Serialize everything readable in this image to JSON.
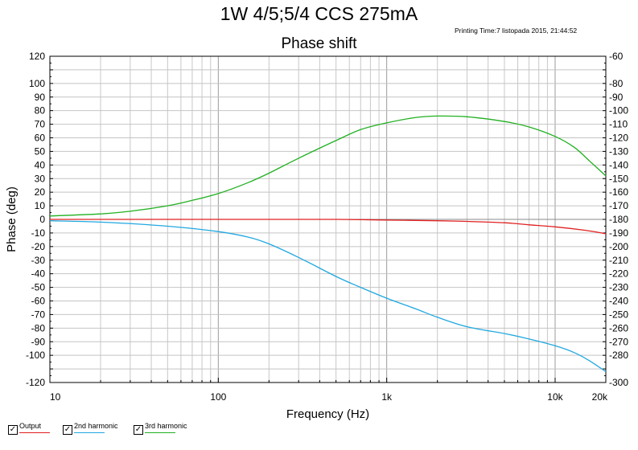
{
  "header": {
    "title": "1W 4/5;5/4 CCS 275mA",
    "printing_time": "Printing Time:7 listopada 2015, 21:44:52"
  },
  "legend": {
    "items": [
      {
        "label": "Output",
        "color": "#e02020",
        "checked": true
      },
      {
        "label": "2nd harmonic",
        "color": "#20a8e0",
        "checked": true
      },
      {
        "label": "3rd harmonic",
        "color": "#20b020",
        "checked": true
      }
    ],
    "check_glyph": "✓"
  },
  "chart_data": {
    "type": "line",
    "title": "Phase shift",
    "xlabel": "Frequency (Hz)",
    "ylabel": "Phase (deg)",
    "xscale": "log",
    "xlim": [
      10,
      20000
    ],
    "ylim": [
      -120,
      120
    ],
    "y2lim": [
      -300,
      -60
    ],
    "grid": true,
    "x_ticks": [
      {
        "value": 10,
        "label": "10"
      },
      {
        "value": 100,
        "label": "100"
      },
      {
        "value": 1000,
        "label": "1k"
      },
      {
        "value": 10000,
        "label": "10k"
      },
      {
        "value": 20000,
        "label": "20k"
      }
    ],
    "y_ticks": [
      120,
      100,
      90,
      80,
      70,
      60,
      50,
      40,
      30,
      20,
      10,
      0,
      -10,
      -20,
      -30,
      -40,
      -50,
      -60,
      -70,
      -80,
      -90,
      -100,
      -120
    ],
    "y2_ticks": [
      -60,
      -80,
      -90,
      -100,
      -110,
      -120,
      -130,
      -140,
      -150,
      -160,
      -170,
      -180,
      -190,
      -200,
      -210,
      -220,
      -230,
      -240,
      -250,
      -260,
      -270,
      -280,
      -300
    ],
    "series": [
      {
        "name": "Output",
        "color": "#e02020",
        "x": [
          10,
          20,
          50,
          100,
          200,
          500,
          1000,
          2000,
          3000,
          5000,
          7000,
          10000,
          15000,
          20000
        ],
        "y": [
          0,
          0,
          0,
          0,
          0,
          0,
          -0.5,
          -1,
          -1.5,
          -2.5,
          -4,
          -5.5,
          -8,
          -10.5
        ]
      },
      {
        "name": "2nd harmonic",
        "color": "#20a8e0",
        "x": [
          10,
          20,
          50,
          100,
          150,
          200,
          300,
          500,
          700,
          1000,
          1500,
          2000,
          3000,
          5000,
          7000,
          10000,
          13000,
          16000,
          20000
        ],
        "y": [
          -1,
          -2,
          -5,
          -9,
          -13,
          -18,
          -28,
          -42,
          -50,
          -58,
          -66,
          -72,
          -79,
          -84,
          -88,
          -93,
          -98,
          -104,
          -112
        ]
      },
      {
        "name": "3rd harmonic",
        "color": "#20b020",
        "x": [
          10,
          20,
          30,
          50,
          70,
          100,
          150,
          200,
          300,
          500,
          700,
          1000,
          1500,
          2000,
          3000,
          5000,
          7000,
          10000,
          13000,
          16000,
          20000
        ],
        "y": [
          2.5,
          4,
          6,
          10,
          14,
          19,
          27,
          34,
          45,
          58,
          66,
          71,
          75,
          76,
          75.5,
          72,
          68,
          61,
          53,
          43,
          32
        ]
      }
    ]
  }
}
